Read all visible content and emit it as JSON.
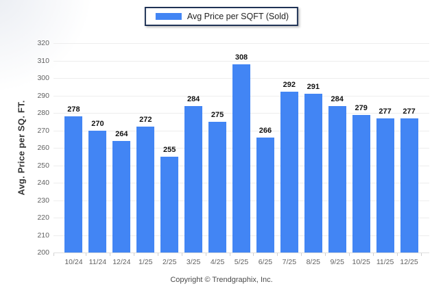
{
  "legend": {
    "label": "Avg Price per SQFT (Sold)",
    "swatch_color": "#4285F4"
  },
  "chart_data": {
    "type": "bar",
    "title": "",
    "series_name": "Avg Price per SQFT (Sold)",
    "categories": [
      "10/24",
      "11/24",
      "12/24",
      "1/25",
      "2/25",
      "3/25",
      "4/25",
      "5/25",
      "6/25",
      "7/25",
      "8/25",
      "9/25",
      "10/25",
      "11/25",
      "12/25"
    ],
    "values": [
      278,
      270,
      264,
      272,
      255,
      284,
      275,
      308,
      266,
      292,
      291,
      284,
      279,
      277,
      277
    ],
    "xlabel": "",
    "ylabel": "Avg. Price per SQ. FT.",
    "ylim": [
      200,
      320
    ],
    "ytick_step": 10,
    "bar_color": "#4285F4",
    "grid": true,
    "legend_position": "top"
  },
  "footer": {
    "copyright": "Copyright © Trendgraphix, Inc."
  }
}
